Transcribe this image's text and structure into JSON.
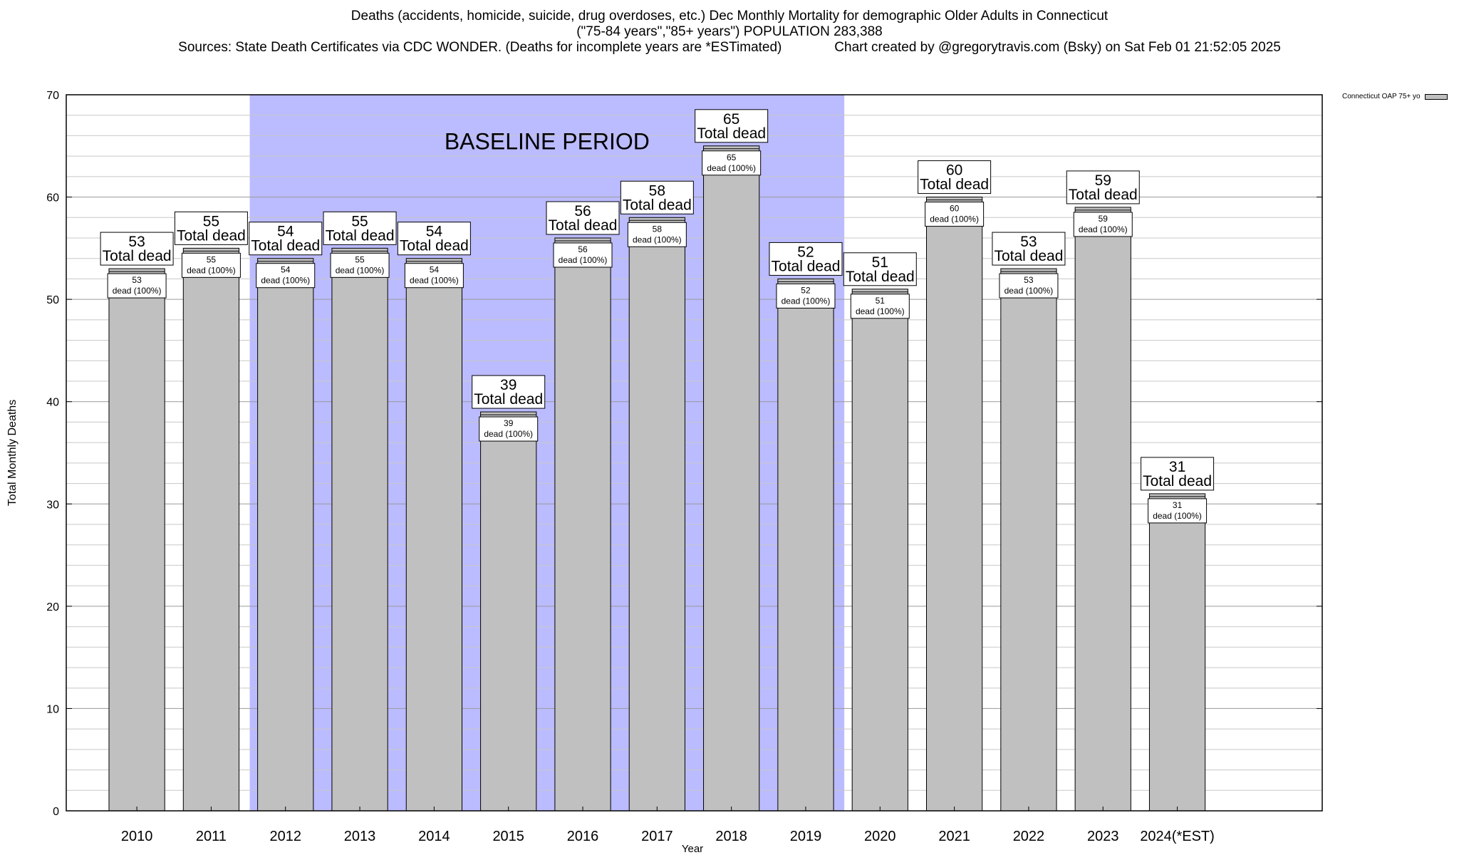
{
  "header": {
    "title_line1": "Deaths (accidents, homicide, suicide, drug overdoses, etc.) Dec Monthly Mortality for demographic Older Adults in Connecticut",
    "title_line2": "(\"75-84 years\",\"85+ years\") POPULATION 283,388",
    "sources": "Sources: State Death Certificates via CDC WONDER. (Deaths for incomplete years are *ESTimated)",
    "credit": "Chart created by @gregorytravis.com (Bsky) on Sat Feb 01 21:52:05 2025"
  },
  "legend": {
    "label": "Connecticut OAP 75+ yo"
  },
  "colors": {
    "bar": "#c0c0c0",
    "baseline": "#bbbbff",
    "grid": "#c8c8c8"
  },
  "chart_data": {
    "type": "bar",
    "title": "Deaths (accidents, homicide, suicide, drug overdoses, etc.) Dec Monthly Mortality for demographic Older Adults in Connecticut",
    "xlabel": "Year",
    "ylabel": "Total Monthly Deaths",
    "ylim": [
      0,
      70
    ],
    "yticks": [
      0,
      10,
      20,
      30,
      40,
      50,
      60,
      70
    ],
    "grid": true,
    "legend_position": "top-right",
    "categories": [
      "2010",
      "2011",
      "2012",
      "2013",
      "2014",
      "2015",
      "2016",
      "2017",
      "2018",
      "2019",
      "2020",
      "2021",
      "2022",
      "2023",
      "2024(*EST)"
    ],
    "series": [
      {
        "name": "Connecticut OAP 75+ yo",
        "values": [
          53,
          55,
          54,
          55,
          54,
          39,
          56,
          58,
          65,
          52,
          51,
          60,
          53,
          59,
          31
        ]
      }
    ],
    "annotations": {
      "baseline_label": "BASELINE PERIOD",
      "baseline_from": "2012",
      "baseline_to": "2019",
      "total_label": "Total dead",
      "inner_label": "dead (100%)"
    }
  }
}
